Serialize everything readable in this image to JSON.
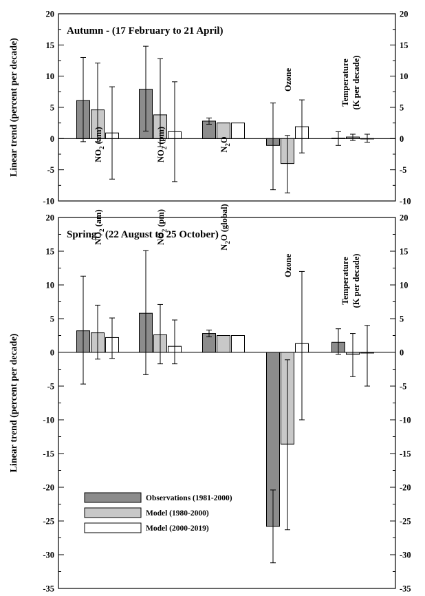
{
  "chart_data": [
    {
      "type": "bar",
      "title": "Autumn - (17 February to 21 April)",
      "ylabel": "Linear trend (percent per decade)",
      "ylim": [
        -10,
        20
      ],
      "yticks": [
        -10,
        -5,
        0,
        5,
        10,
        15,
        20
      ],
      "series_names": [
        "Observations (1981-2000)",
        "Model (1980-2000)",
        "Model (2000-2019)"
      ],
      "groups": [
        {
          "label": "NO2 (am)",
          "label_main": "NO",
          "label_sub": "2",
          "label_rest": " (am)",
          "values": [
            6.1,
            4.6,
            0.9
          ],
          "errors": [
            [
              -0.5,
              13.0
            ],
            [
              -0.5,
              12.1
            ],
            [
              -6.5,
              8.3
            ]
          ]
        },
        {
          "label": "NO2 (pm)",
          "label_main": "NO",
          "label_sub": "2",
          "label_rest": " (pm)",
          "values": [
            7.9,
            3.8,
            1.1
          ],
          "errors": [
            [
              1.2,
              14.8
            ],
            [
              -1.3,
              12.8
            ],
            [
              -6.9,
              9.1
            ]
          ]
        },
        {
          "label": "N2O",
          "label_main": "N",
          "label_sub": "2",
          "label_rest": "O",
          "values": [
            2.8,
            2.5,
            2.5
          ],
          "errors": [
            [
              2.3,
              3.3
            ],
            null,
            null
          ]
        },
        {
          "label": "Ozone",
          "label_main": "Ozone",
          "label_sub": "",
          "label_rest": "",
          "values": [
            -1.1,
            -4.0,
            1.9
          ],
          "errors": [
            [
              -8.2,
              5.7
            ],
            [
              -8.7,
              0.5
            ],
            [
              -2.3,
              6.2
            ]
          ]
        },
        {
          "label": "Temperature (K per decade)",
          "label_main": "Temperature",
          "label_line2": "(K per decade)",
          "values": [
            0.05,
            0.25,
            0.0
          ],
          "errors": [
            [
              -1.1,
              1.1
            ],
            [
              -0.3,
              0.7
            ],
            [
              -0.6,
              0.7
            ]
          ]
        }
      ]
    },
    {
      "type": "bar",
      "title": "Spring - (22 August to 25 October)",
      "ylabel": "Linear trend (percent per decade)",
      "ylim": [
        -35,
        20
      ],
      "yticks": [
        -35,
        -30,
        -25,
        -20,
        -15,
        -10,
        -5,
        0,
        5,
        10,
        15,
        20
      ],
      "series_names": [
        "Observations (1981-2000)",
        "Model (1980-2000)",
        "Model (2000-2019)"
      ],
      "groups": [
        {
          "label": "NO2 (am)",
          "label_main": "NO",
          "label_sub": "2",
          "label_rest": " (am)",
          "values": [
            3.2,
            2.9,
            2.2
          ],
          "errors": [
            [
              -4.7,
              11.3
            ],
            [
              -1.0,
              7.0
            ],
            [
              -0.9,
              5.1
            ]
          ]
        },
        {
          "label": "NO2 (pm)",
          "label_main": "NO",
          "label_sub": "2",
          "label_rest": " (pm)",
          "values": [
            5.8,
            2.6,
            0.9
          ],
          "errors": [
            [
              -3.3,
              15.1
            ],
            [
              -1.7,
              7.1
            ],
            [
              -1.7,
              4.8
            ]
          ]
        },
        {
          "label": "N2O (global)",
          "label_main": "N",
          "label_sub": "2",
          "label_rest": "O (global)",
          "values": [
            2.8,
            2.5,
            2.5
          ],
          "errors": [
            [
              2.3,
              3.3
            ],
            null,
            null
          ]
        },
        {
          "label": "Ozone",
          "label_main": "Ozone",
          "label_sub": "",
          "label_rest": "",
          "values": [
            -25.8,
            -13.6,
            1.3
          ],
          "errors": [
            [
              -31.2,
              -20.4
            ],
            [
              -26.3,
              -1.1
            ],
            [
              -10.0,
              12.0
            ]
          ]
        },
        {
          "label": "Temperature (K per decade)",
          "label_main": "Temperature",
          "label_line2": "(K per decade)",
          "values": [
            1.5,
            -0.3,
            -0.1
          ],
          "errors": [
            [
              -0.3,
              3.5
            ],
            [
              -3.6,
              2.8
            ],
            [
              -5.0,
              4.0
            ]
          ]
        }
      ],
      "legend": [
        {
          "label": "Observations (1981-2000)",
          "color": "#8c8c8c"
        },
        {
          "label": "Model (1980-2000)",
          "color": "#c8c8c8"
        },
        {
          "label": "Model (2000-2019)",
          "color": "#ffffff"
        }
      ]
    }
  ]
}
